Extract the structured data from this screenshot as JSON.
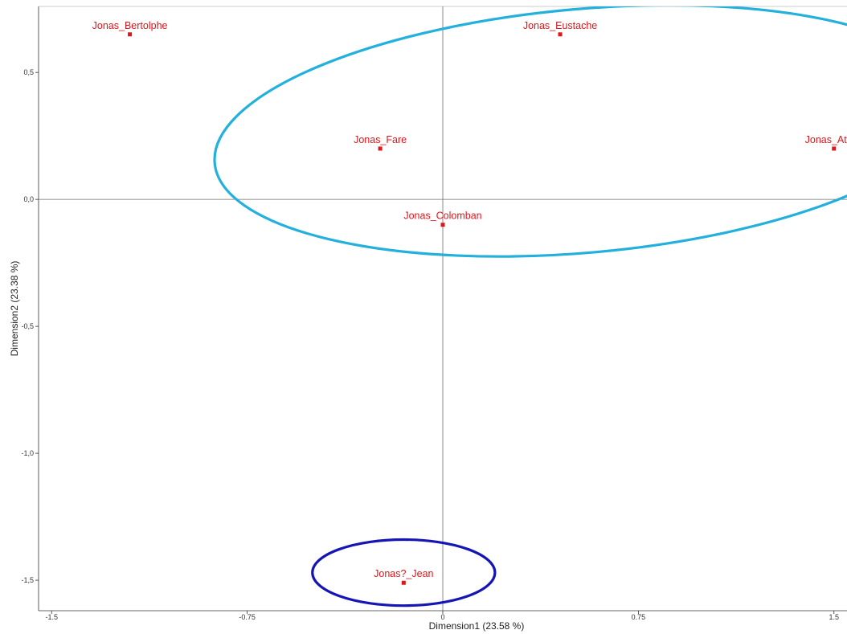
{
  "chart_data": {
    "type": "scatter",
    "title": "",
    "xlabel": "Dimension1 (23.58 %)",
    "ylabel": "Dimension2 (23.38 %)",
    "xlim": [
      -1.55,
      1.55
    ],
    "ylim": [
      -1.62,
      0.76
    ],
    "xticks": [
      {
        "value": -1.5,
        "label": "-1.5"
      },
      {
        "value": -0.75,
        "label": "-0.75"
      },
      {
        "value": 0,
        "label": "0"
      },
      {
        "value": 0.75,
        "label": "0.75"
      },
      {
        "value": 1.5,
        "label": "1.5"
      }
    ],
    "yticks": [
      {
        "value": 0.5,
        "label": "0,5"
      },
      {
        "value": 0.0,
        "label": "0,0"
      },
      {
        "value": -0.5,
        "label": "-0,5"
      },
      {
        "value": -1.0,
        "label": "-1,0"
      },
      {
        "value": -1.5,
        "label": "-1,5"
      }
    ],
    "grid": false,
    "reference_lines": {
      "x": 0,
      "y": 0
    },
    "points": [
      {
        "label": "Jonas_Bertolphe",
        "x": -1.2,
        "y": 0.65,
        "color": "#e0151b"
      },
      {
        "label": "Jonas_Eustache",
        "x": 0.45,
        "y": 0.65,
        "color": "#e0151b"
      },
      {
        "label": "Jonas_Fare",
        "x": -0.24,
        "y": 0.2,
        "color": "#e0151b"
      },
      {
        "label": "Jonas_Attala",
        "x": 1.5,
        "y": 0.2,
        "color": "#e0151b"
      },
      {
        "label": "Jonas_Colomban",
        "x": 0.0,
        "y": -0.1,
        "color": "#e0151b"
      },
      {
        "label": "Jonas?_Jean",
        "x": -0.15,
        "y": -1.51,
        "color": "#e0151b"
      }
    ],
    "ellipses": [
      {
        "cx": 0.54,
        "cy": 0.27,
        "rx": 1.42,
        "ry": 0.48,
        "angle_deg": 5,
        "color": "#23b0dc"
      },
      {
        "cx": -0.15,
        "cy": -1.47,
        "rx": 0.35,
        "ry": 0.13,
        "angle_deg": 0,
        "color": "#1515b5"
      }
    ]
  }
}
